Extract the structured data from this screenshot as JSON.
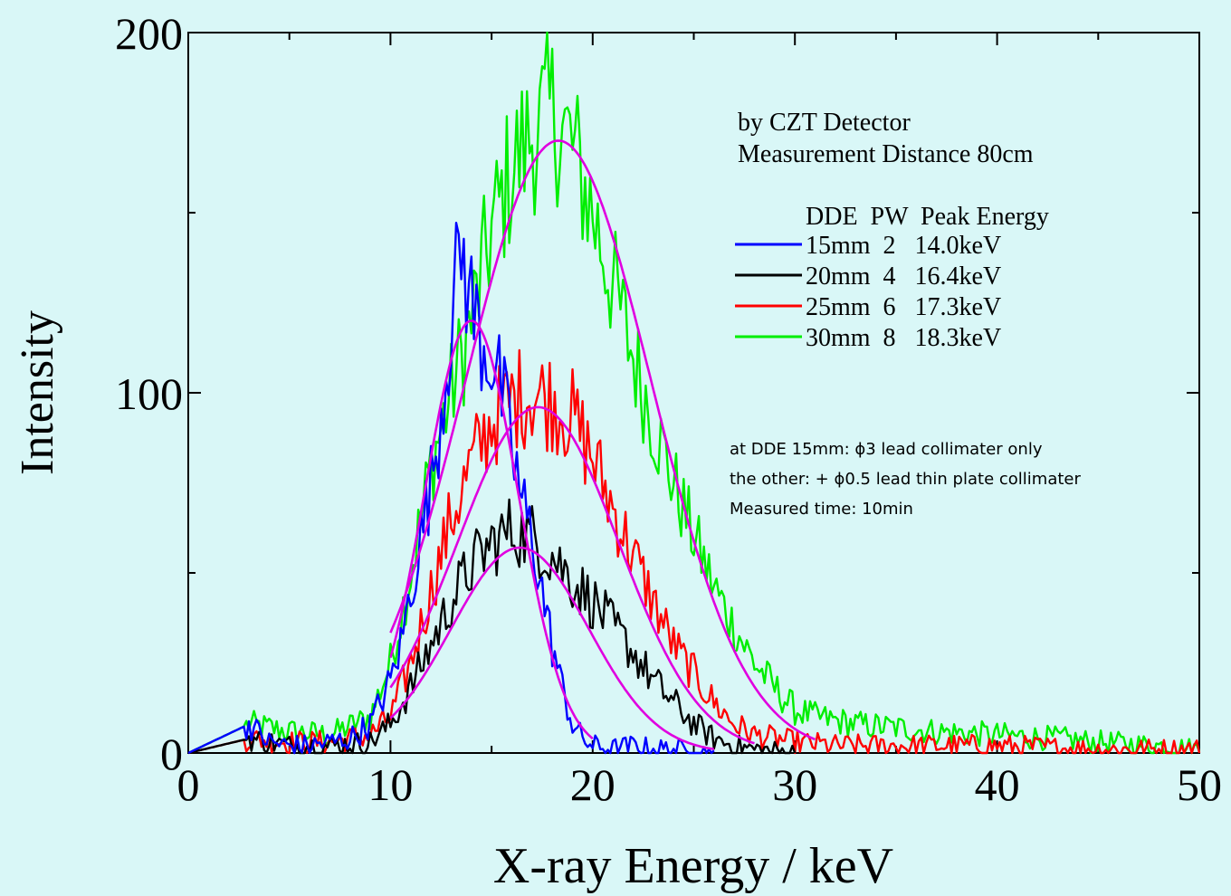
{
  "chart_data": {
    "type": "line",
    "title": "",
    "xlabel": "X-ray Energy / keV",
    "ylabel": "Intensity",
    "xlim": [
      0,
      50
    ],
    "ylim": [
      0,
      200
    ],
    "x_ticks": [
      "0",
      "10",
      "20",
      "30",
      "40",
      "50"
    ],
    "y_ticks": [
      "0",
      "100",
      "200"
    ],
    "grid": false,
    "annotation_top": [
      "by CZT Detector",
      "Measurement Distance 80cm"
    ],
    "legend_header": "DDE  PW  Peak Energy",
    "legend_position": "top-right",
    "notes": [
      "at DDE 15mm: ϕ3 lead collimater only",
      "the other: + ϕ0.5 lead thin plate collimater",
      "Measured time: 10min"
    ],
    "fit_color": "#e000e0",
    "series": [
      {
        "name": "15mm  2   14.0keV",
        "color": "#0000ff",
        "x": [
          0,
          3,
          4,
          5,
          6,
          7,
          8,
          9,
          10,
          10.5,
          11,
          11.5,
          12,
          12.5,
          13,
          13.5,
          14,
          14.5,
          15,
          15.5,
          16,
          16.5,
          17,
          17.5,
          18,
          18.5,
          19,
          19.5,
          20,
          21,
          22,
          23,
          24,
          25,
          26
        ],
        "values": [
          0,
          8,
          3,
          2,
          2,
          3,
          4,
          8,
          20,
          30,
          45,
          60,
          75,
          95,
          120,
          140,
          125,
          115,
          110,
          100,
          85,
          70,
          60,
          45,
          30,
          18,
          8,
          4,
          2,
          1,
          2,
          1,
          1,
          0,
          0
        ]
      },
      {
        "name": "20mm  4   16.4keV",
        "color": "#000000",
        "x": [
          0,
          3,
          5,
          7,
          9,
          10,
          11,
          12,
          13,
          14,
          15,
          16,
          17,
          18,
          19,
          20,
          21,
          22,
          23,
          24,
          25,
          26,
          27,
          28,
          30
        ],
        "values": [
          0,
          4,
          2,
          2,
          3,
          8,
          18,
          30,
          42,
          52,
          58,
          62,
          60,
          55,
          48,
          42,
          35,
          28,
          20,
          14,
          8,
          4,
          2,
          1,
          0
        ]
      },
      {
        "name": "25mm  6   17.3keV",
        "color": "#ff0000",
        "x": [
          0,
          3,
          5,
          7,
          9,
          10,
          11,
          12,
          13,
          14,
          15,
          16,
          17,
          18,
          19,
          20,
          21,
          22,
          23,
          24,
          25,
          26,
          27,
          28,
          30,
          32,
          35,
          40,
          45,
          48,
          50
        ],
        "values": [
          0,
          4,
          3,
          3,
          5,
          10,
          25,
          45,
          65,
          80,
          92,
          98,
          100,
          98,
          93,
          82,
          68,
          55,
          42,
          30,
          22,
          14,
          8,
          5,
          3,
          2,
          2,
          2,
          1,
          1,
          1
        ]
      },
      {
        "name": "30mm  8   18.3keV",
        "color": "#00ee00",
        "x": [
          0,
          3,
          5,
          7,
          9,
          10,
          11,
          12,
          13,
          14,
          15,
          16,
          17,
          18,
          19,
          20,
          21,
          22,
          23,
          24,
          25,
          26,
          27,
          28,
          29,
          30,
          31,
          33,
          35,
          37,
          40,
          43,
          45,
          48,
          50
        ],
        "values": [
          0,
          8,
          6,
          5,
          10,
          25,
          50,
          80,
          100,
          120,
          145,
          162,
          172,
          178,
          168,
          150,
          130,
          110,
          92,
          75,
          60,
          46,
          35,
          25,
          18,
          12,
          10,
          8,
          7,
          6,
          5,
          4,
          3,
          2,
          1
        ]
      }
    ],
    "fits": [
      {
        "center": 14.0,
        "sigma": 2.3,
        "amp": 120,
        "from": 10,
        "to": 20
      },
      {
        "center": 16.4,
        "sigma": 3.4,
        "amp": 57,
        "from": 10,
        "to": 26
      },
      {
        "center": 17.3,
        "sigma": 4.0,
        "amp": 96,
        "from": 10,
        "to": 28
      },
      {
        "center": 18.3,
        "sigma": 4.6,
        "amp": 170,
        "from": 10,
        "to": 31
      }
    ]
  }
}
